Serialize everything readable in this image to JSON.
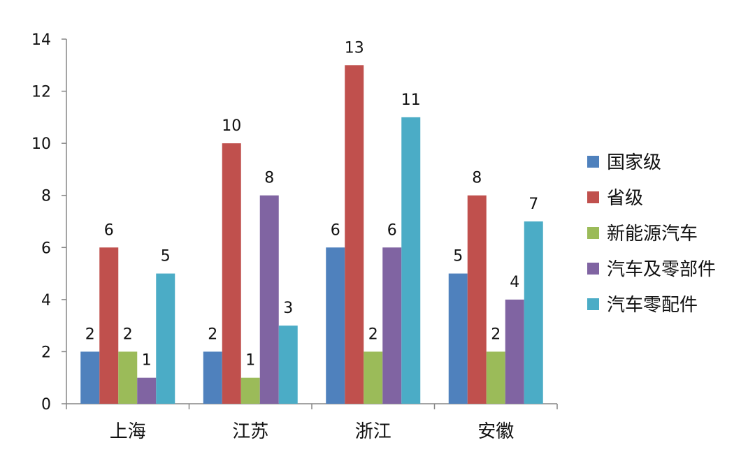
{
  "chart_data": {
    "type": "bar",
    "title": "",
    "xlabel": "",
    "ylabel": "",
    "categories": [
      "上海",
      "江苏",
      "浙江",
      "安徽"
    ],
    "series": [
      {
        "name": "国家级",
        "color": "#4F81BD",
        "values": [
          2,
          2,
          6,
          5
        ]
      },
      {
        "name": "省级",
        "color": "#C0504D",
        "values": [
          6,
          10,
          13,
          8
        ]
      },
      {
        "name": "新能源汽车",
        "color": "#9BBB59",
        "values": [
          2,
          1,
          2,
          2
        ]
      },
      {
        "name": "汽车及零部件",
        "color": "#8064A2",
        "values": [
          1,
          8,
          6,
          4
        ]
      },
      {
        "name": "汽车零配件",
        "color": "#4BACC6",
        "values": [
          5,
          3,
          11,
          7
        ]
      }
    ],
    "ylim": [
      0,
      14
    ],
    "yticks": [
      0,
      2,
      4,
      6,
      8,
      10,
      12,
      14
    ],
    "grid": false,
    "legend": "right",
    "data_labels": true
  }
}
